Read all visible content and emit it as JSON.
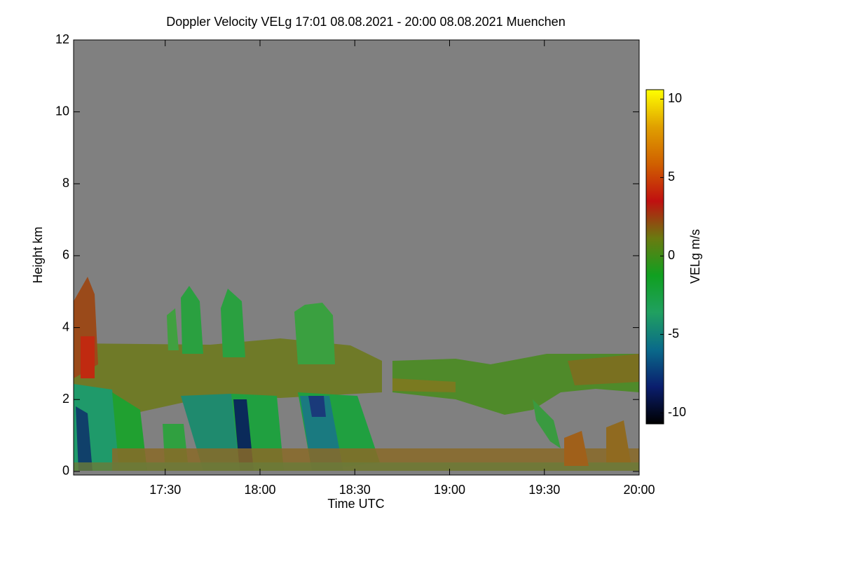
{
  "chart_data": {
    "type": "heatmap",
    "title": "Doppler Velocity VELg   17:01 08.08.2021 - 20:00 08.08.2021 Muenchen",
    "x_label": "Time UTC",
    "y_label": "Height km",
    "xlim": [
      17.0167,
      20.0
    ],
    "xticks": [
      {
        "value": 17.5,
        "label": "17:30"
      },
      {
        "value": 18.0,
        "label": "18:00"
      },
      {
        "value": 18.5,
        "label": "18:30"
      },
      {
        "value": 19.0,
        "label": "19:00"
      },
      {
        "value": 19.5,
        "label": "19:30"
      },
      {
        "value": 20.0,
        "label": "20:00"
      }
    ],
    "ylim": [
      -0.1,
      12
    ],
    "yticks": [
      0,
      2,
      4,
      6,
      8,
      10,
      12
    ],
    "colorbar": {
      "label": "VELg m/s",
      "clim": [
        -10.7,
        10.6
      ],
      "ticks": [
        -10,
        -5,
        0,
        5,
        10
      ],
      "colormap": [
        "#000000",
        "#0a1e6e",
        "#0a6a8a",
        "#20a060",
        "#10a020",
        "#6a7a10",
        "#c01010",
        "#d06000",
        "#e0a000",
        "#ffff00"
      ]
    },
    "background": "#808080"
  }
}
